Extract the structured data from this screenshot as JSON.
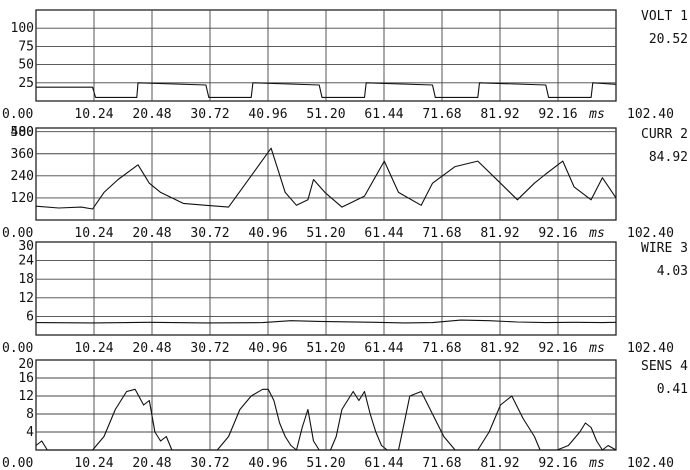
{
  "chart_data": [
    {
      "type": "line",
      "channel_label": "VOLT 1",
      "readout": "20.52",
      "x_unit": "ms",
      "x_ticks": [
        "0.00",
        "10.24",
        "20.48",
        "30.72",
        "40.96",
        "51.20",
        "61.44",
        "71.68",
        "81.92",
        "92.16",
        "102.40"
      ],
      "xlim": [
        0,
        102.4
      ],
      "y_ticks": [
        "25",
        "50",
        "75",
        "100"
      ],
      "ylim": [
        0,
        125
      ],
      "grid": true,
      "x": [
        0,
        10.0,
        10.5,
        17.8,
        18.0,
        30.0,
        30.5,
        38.0,
        38.3,
        50.0,
        50.5,
        58.0,
        58.3,
        70.0,
        70.5,
        78.0,
        78.3,
        90.0,
        90.5,
        98.0,
        98.3,
        102.4
      ],
      "y": [
        19,
        19,
        5,
        5,
        25,
        22,
        5,
        5,
        25,
        22,
        5,
        5,
        25,
        22,
        5,
        5,
        25,
        22,
        5,
        5,
        25,
        23
      ]
    },
    {
      "type": "line",
      "channel_label": "CURR 2",
      "readout": "84.92",
      "x_unit": "ms",
      "x_ticks": [
        "0.00",
        "10.24",
        "20.48",
        "30.72",
        "40.96",
        "51.20",
        "61.44",
        "71.68",
        "81.92",
        "92.16",
        "102.40"
      ],
      "xlim": [
        0,
        102.4
      ],
      "y_ticks": [
        "120",
        "240",
        "360",
        "480",
        "500"
      ],
      "ylim": [
        0,
        500
      ],
      "grid": true,
      "x": [
        0,
        4,
        8,
        10,
        12,
        14.5,
        18,
        20,
        22,
        26,
        30,
        34,
        38,
        41.5,
        44,
        46,
        48,
        49,
        51,
        54,
        58,
        61.5,
        64,
        68,
        70,
        74,
        78,
        82,
        85,
        88,
        90,
        93,
        95,
        98,
        100,
        102.4
      ],
      "y": [
        75,
        65,
        70,
        60,
        150,
        220,
        300,
        200,
        150,
        90,
        80,
        70,
        240,
        390,
        150,
        80,
        110,
        220,
        150,
        70,
        130,
        320,
        150,
        80,
        200,
        290,
        320,
        200,
        110,
        200,
        250,
        320,
        180,
        110,
        230,
        120
      ]
    },
    {
      "type": "line",
      "channel_label": "WIRE 3",
      "readout": "4.03",
      "x_unit": "ms",
      "x_ticks": [
        "0.00",
        "10.24",
        "20.48",
        "30.72",
        "40.96",
        "51.20",
        "61.44",
        "71.68",
        "81.92",
        "92.16",
        "102.40"
      ],
      "xlim": [
        0,
        102.4
      ],
      "y_ticks": [
        "6",
        "12",
        "18",
        "24",
        "30"
      ],
      "ylim": [
        0,
        30
      ],
      "grid": true,
      "x": [
        0,
        10,
        20,
        30,
        40,
        45,
        50,
        60,
        65,
        70,
        75,
        80,
        85,
        90,
        95,
        100,
        102.4
      ],
      "y": [
        4.0,
        3.9,
        4.1,
        3.9,
        4.0,
        4.6,
        4.4,
        4.1,
        3.9,
        4.0,
        4.8,
        4.6,
        4.2,
        4.0,
        4.1,
        4.0,
        4.1
      ]
    },
    {
      "type": "line",
      "channel_label": "SENS 4",
      "readout": "0.41",
      "x_unit": "ms",
      "x_ticks": [
        "0.00",
        "10.24",
        "20.48",
        "30.72",
        "40.96",
        "51.20",
        "61.44",
        "71.68",
        "81.92",
        "92.16",
        "102.40"
      ],
      "xlim": [
        0,
        102.4
      ],
      "y_ticks": [
        "4",
        "8",
        "12",
        "16",
        "20"
      ],
      "ylim": [
        0,
        20
      ],
      "grid": true,
      "x": [
        0,
        1,
        2,
        10,
        12,
        14,
        16,
        17.5,
        19,
        20,
        21,
        22,
        23,
        24,
        28,
        32,
        34,
        36,
        38,
        40,
        41,
        42,
        43,
        44,
        45,
        46,
        47,
        48,
        49,
        50,
        51,
        52,
        53,
        54,
        55,
        56,
        57,
        58,
        59,
        60,
        61,
        62,
        63,
        64,
        65,
        66,
        68,
        70,
        72,
        74,
        76,
        78,
        80,
        82,
        84,
        86,
        88,
        89,
        90,
        91,
        92,
        94,
        96,
        97,
        98,
        99,
        100,
        101,
        102.4
      ],
      "y": [
        1,
        2,
        0,
        0,
        3,
        9,
        13,
        13.5,
        10,
        11,
        4,
        2,
        3,
        0,
        0,
        0,
        3,
        9,
        12,
        13.5,
        13.5,
        11,
        6,
        3,
        1,
        0,
        5,
        9,
        2,
        0,
        0,
        0,
        3,
        9,
        11,
        13,
        11,
        13,
        8,
        4,
        1,
        0,
        0,
        0,
        6,
        12,
        13,
        8,
        3,
        0,
        0,
        0,
        4,
        10,
        12,
        7,
        3,
        0,
        0,
        0,
        0,
        1,
        4,
        6,
        5,
        2,
        0,
        1,
        0
      ]
    }
  ]
}
